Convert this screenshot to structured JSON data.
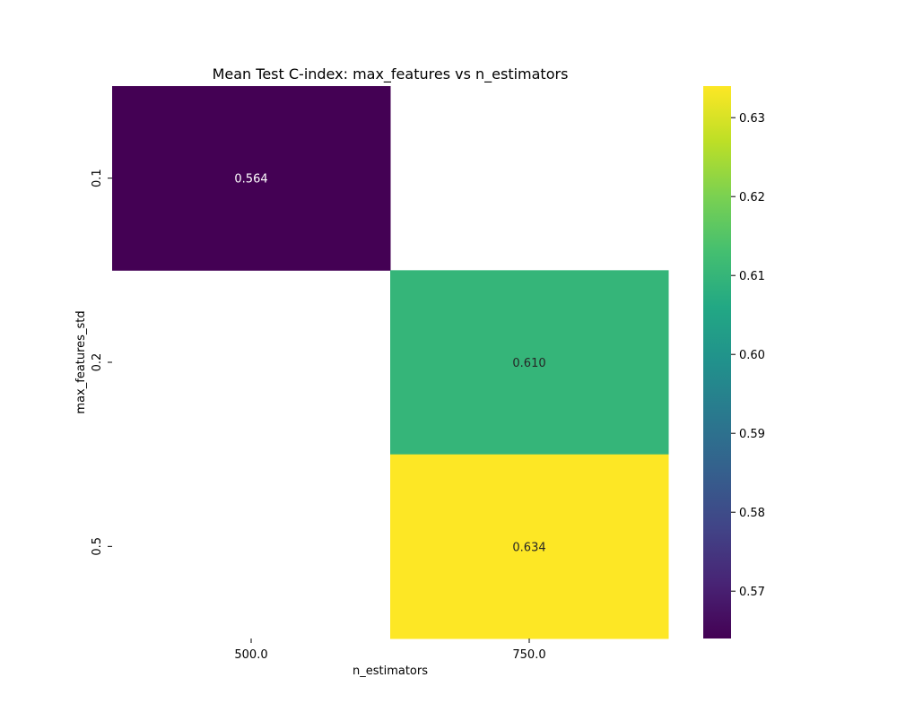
{
  "chart_data": {
    "type": "heatmap",
    "title": "Mean Test C-index: max_features vs n_estimators",
    "xlabel": "n_estimators",
    "ylabel": "max_features_std",
    "x_categories": [
      "500.0",
      "750.0"
    ],
    "y_categories": [
      "0.1",
      "0.2",
      "0.5"
    ],
    "values": [
      [
        0.564,
        null
      ],
      [
        null,
        0.61
      ],
      [
        null,
        0.634
      ]
    ],
    "annotations": [
      [
        "0.564",
        ""
      ],
      [
        "",
        "0.610"
      ],
      [
        "",
        "0.634"
      ]
    ],
    "colormap": "viridis",
    "colorbar": {
      "range": [
        0.564,
        0.634
      ],
      "ticks": [
        "0.57",
        "0.58",
        "0.59",
        "0.60",
        "0.61",
        "0.62",
        "0.63"
      ]
    },
    "annotation_colors": {
      "dark_cell": "#ffffff",
      "light_cell": "#262626"
    }
  }
}
